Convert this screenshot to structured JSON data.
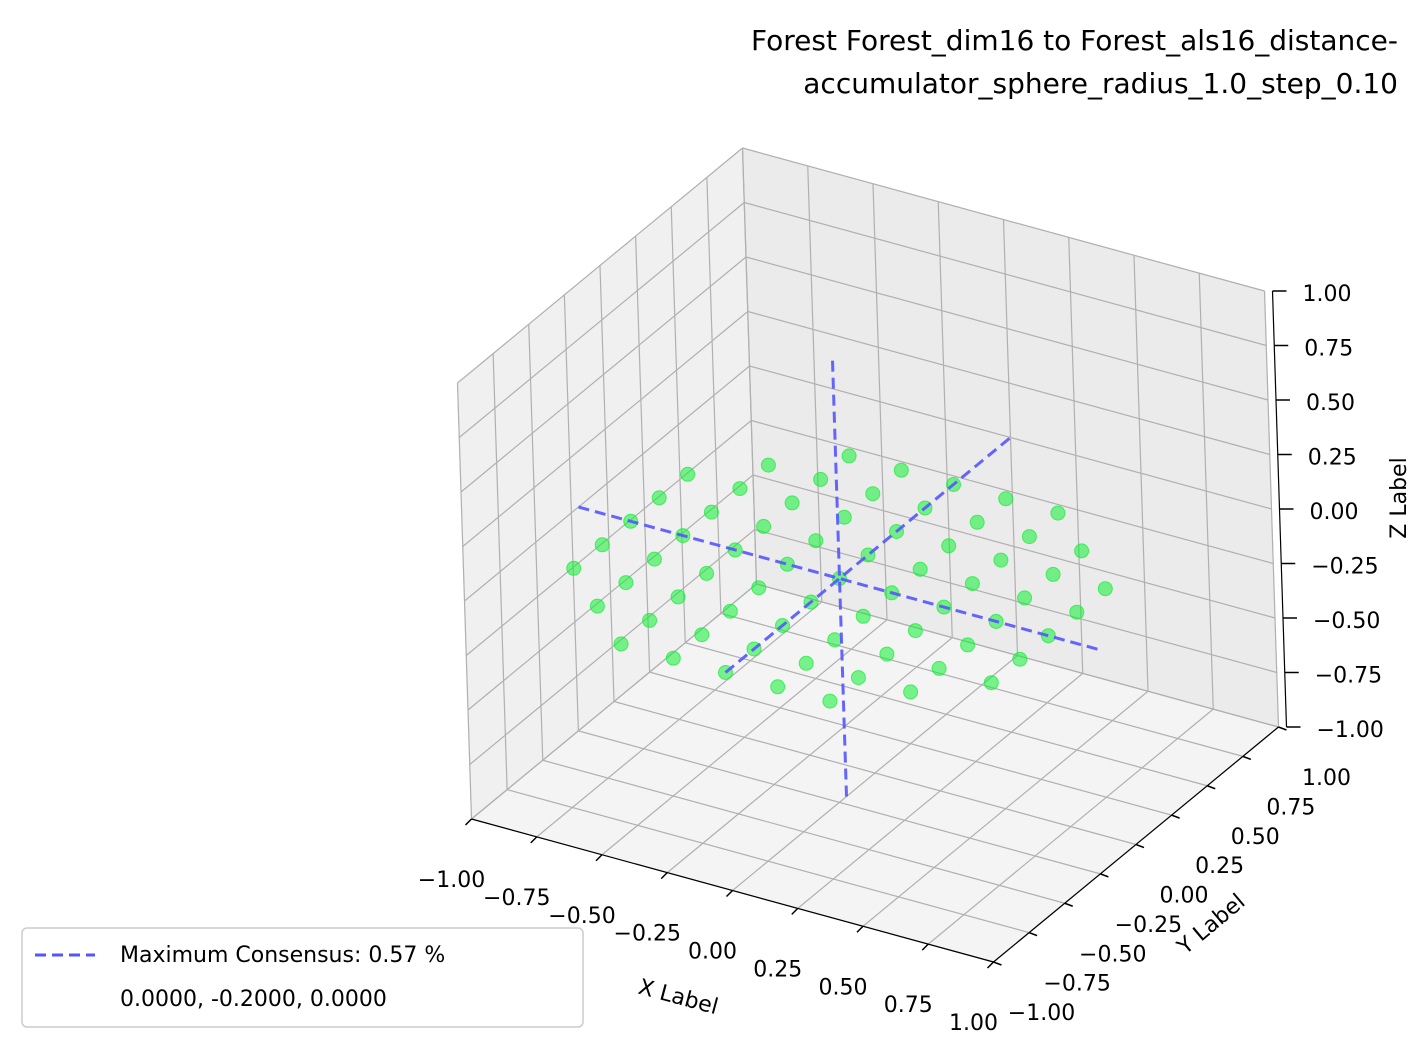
{
  "chart_data": {
    "type": "scatter3d",
    "title": [
      "Forest Forest_dim16 to Forest_als16_distance-",
      "accumulator_sphere_radius_1.0_step_0.10"
    ],
    "xlabel": "X Label",
    "ylabel": "Y Label",
    "zlabel": "Z Label",
    "xlim": [
      -1,
      1
    ],
    "ylim": [
      -1,
      1
    ],
    "zlim": [
      -1,
      1
    ],
    "xticks": [
      {
        "value": -1,
        "label": "−1.00"
      },
      {
        "value": -0.75,
        "label": "−0.75"
      },
      {
        "value": -0.5,
        "label": "−0.50"
      },
      {
        "value": -0.25,
        "label": "−0.25"
      },
      {
        "value": 0,
        "label": "0.00"
      },
      {
        "value": 0.25,
        "label": "0.25"
      },
      {
        "value": 0.5,
        "label": "0.50"
      },
      {
        "value": 0.75,
        "label": "0.75"
      },
      {
        "value": 1,
        "label": "1.00"
      }
    ],
    "yticks": [
      {
        "value": -1,
        "label": "−1.00"
      },
      {
        "value": -0.75,
        "label": "−0.75"
      },
      {
        "value": -0.5,
        "label": "−0.50"
      },
      {
        "value": -0.25,
        "label": "−0.25"
      },
      {
        "value": 0,
        "label": "0.00"
      },
      {
        "value": 0.25,
        "label": "0.25"
      },
      {
        "value": 0.5,
        "label": "0.50"
      },
      {
        "value": 0.75,
        "label": "0.75"
      },
      {
        "value": 1,
        "label": "1.00"
      }
    ],
    "zticks": [
      {
        "value": -1,
        "label": "−1.00"
      },
      {
        "value": -0.75,
        "label": "−0.75"
      },
      {
        "value": -0.5,
        "label": "−0.50"
      },
      {
        "value": -0.25,
        "label": "−0.25"
      },
      {
        "value": 0,
        "label": "0.00"
      },
      {
        "value": 0.25,
        "label": "0.25"
      },
      {
        "value": 0.5,
        "label": "0.50"
      },
      {
        "value": 0.75,
        "label": "0.75"
      },
      {
        "value": 1,
        "label": "1.00"
      }
    ],
    "grid": true,
    "points": {
      "color": "#11ee33",
      "x": [
        -0.8,
        -0.8,
        -0.8,
        -0.8,
        -0.8,
        -0.6,
        -0.6,
        -0.6,
        -0.6,
        -0.6,
        -0.6,
        -0.6,
        -0.4,
        -0.4,
        -0.4,
        -0.4,
        -0.4,
        -0.4,
        -0.4,
        -0.4,
        -0.4,
        -0.2,
        -0.2,
        -0.2,
        -0.2,
        -0.2,
        -0.2,
        -0.2,
        -0.2,
        -0.2,
        0,
        0,
        0,
        0,
        0,
        0,
        0,
        0,
        0,
        0.2,
        0.2,
        0.2,
        0.2,
        0.2,
        0.2,
        0.2,
        0.2,
        0.2,
        0.4,
        0.4,
        0.4,
        0.4,
        0.4,
        0.4,
        0.4,
        0.4,
        0.4,
        0.6,
        0.6,
        0.6,
        0.6,
        0.6,
        0.6,
        0.6,
        0.8,
        0.8,
        0.8,
        0.8,
        0.8
      ],
      "y": [
        -0.6,
        -0.4,
        -0.2,
        0,
        0.2,
        -0.8,
        -0.6,
        -0.4,
        -0.2,
        0,
        0.2,
        0.4,
        -1,
        -0.8,
        -0.6,
        -0.4,
        -0.2,
        0,
        0.2,
        0.4,
        0.6,
        -1,
        -0.8,
        -0.6,
        -0.4,
        -0.2,
        0,
        0.2,
        0.4,
        0.6,
        -1,
        -0.8,
        -0.6,
        -0.4,
        -0.2,
        0,
        0.2,
        0.4,
        0.6,
        -1,
        -0.8,
        -0.6,
        -0.4,
        -0.2,
        0,
        0.2,
        0.4,
        0.6,
        -1,
        -0.8,
        -0.6,
        -0.4,
        -0.2,
        0,
        0.2,
        0.4,
        0.6,
        -0.8,
        -0.6,
        -0.4,
        -0.2,
        0,
        0.2,
        0.4,
        -0.6,
        -0.4,
        -0.2,
        0,
        0.2
      ],
      "z": [
        0,
        0,
        0,
        0,
        0,
        0,
        0,
        0,
        0,
        0,
        0,
        0,
        0,
        0,
        0,
        0,
        0,
        0,
        0,
        0,
        0,
        0,
        0,
        0,
        0,
        0,
        0,
        0,
        0,
        0,
        0,
        0,
        0,
        0,
        0,
        0,
        0,
        0,
        0,
        0,
        0,
        0,
        0,
        0,
        0,
        0,
        0,
        0,
        0,
        0,
        0,
        0,
        0,
        0,
        0,
        0,
        0,
        0,
        0,
        0,
        0,
        0,
        0,
        0,
        0,
        0,
        0,
        0,
        0
      ]
    },
    "consensus": {
      "name": "Maximum Consensus: 0.57 %",
      "coords_label": "0.0000, -0.2000, 0.0000",
      "point": [
        0,
        -0.2,
        0
      ],
      "color": "#5555ff"
    },
    "legend": "lower left"
  }
}
